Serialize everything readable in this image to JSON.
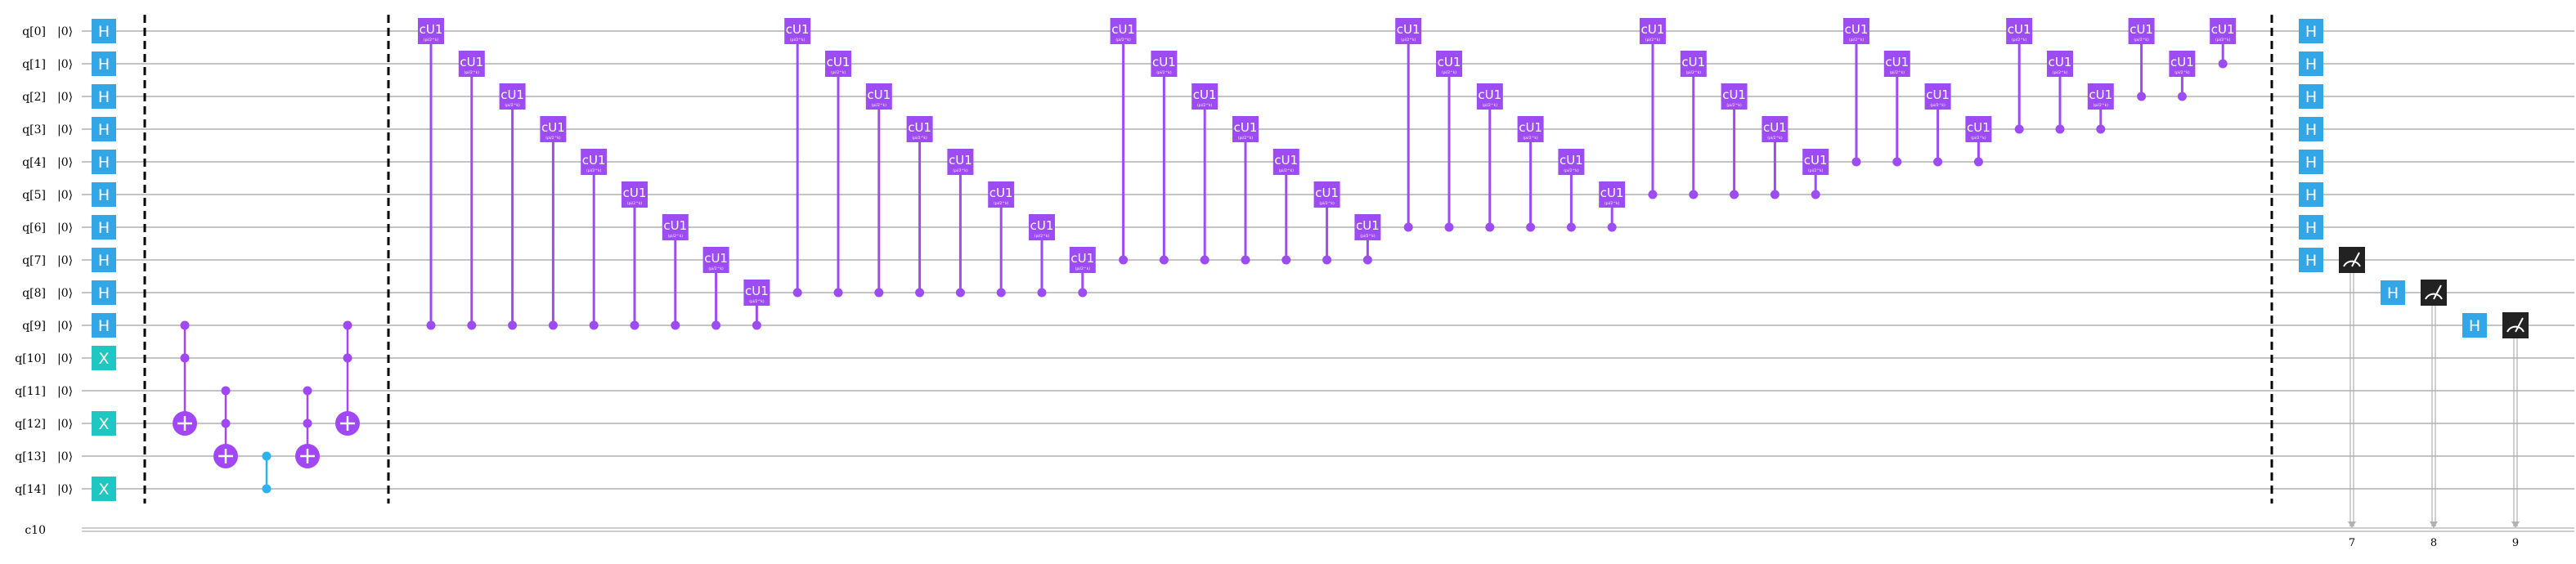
{
  "qubit_labels": [
    "q[0]",
    "q[1]",
    "q[2]",
    "q[3]",
    "q[4]",
    "q[5]",
    "q[6]",
    "q[7]",
    "q[8]",
    "q[9]",
    "q[10]",
    "q[11]",
    "q[12]",
    "q[13]",
    "q[14]"
  ],
  "initial_state": "|0⟩",
  "classical_label": "c10",
  "gate_labels": {
    "h": "H",
    "x": "X",
    "cu1": "cU1",
    "cu1_param": "(pi/2^k)"
  },
  "measure_indices": [
    "7",
    "8",
    "9"
  ],
  "colors": {
    "h": "#33a6e8",
    "x": "#1fc7c3",
    "cu1": "#9d4cf3",
    "cnot": "#a147f5",
    "cz": "#2db2f0",
    "measure": "#222222",
    "wire": "#b0b0b0",
    "barrier": "#000000"
  }
}
